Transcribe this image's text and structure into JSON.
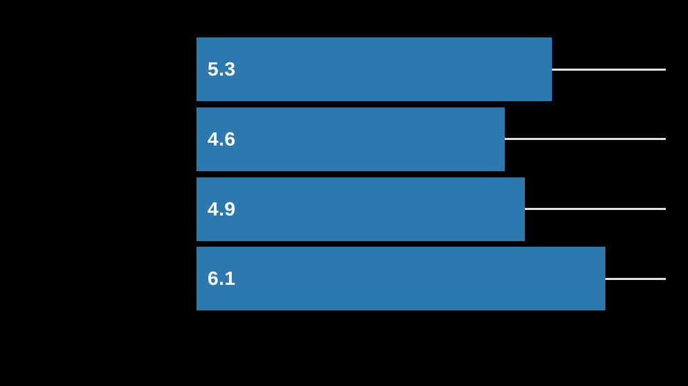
{
  "chart_data": {
    "type": "bar",
    "orientation": "horizontal",
    "title": "",
    "xlabel": "",
    "ylabel": "",
    "categories": [
      "",
      "",
      "",
      ""
    ],
    "values": [
      5.3,
      4.6,
      4.9,
      6.1
    ],
    "value_labels": [
      "5.3",
      "4.6",
      "4.9",
      "6.1"
    ],
    "xlim": [
      0,
      7
    ],
    "grid": "off",
    "legend": "none",
    "value_label_position": "inside-left",
    "leader_lines_to_axis_max": true,
    "colors": {
      "bar": "#2b79af",
      "value_label": "#ffffff",
      "leader_line": "#e2e2e2",
      "background": "#000000"
    }
  }
}
